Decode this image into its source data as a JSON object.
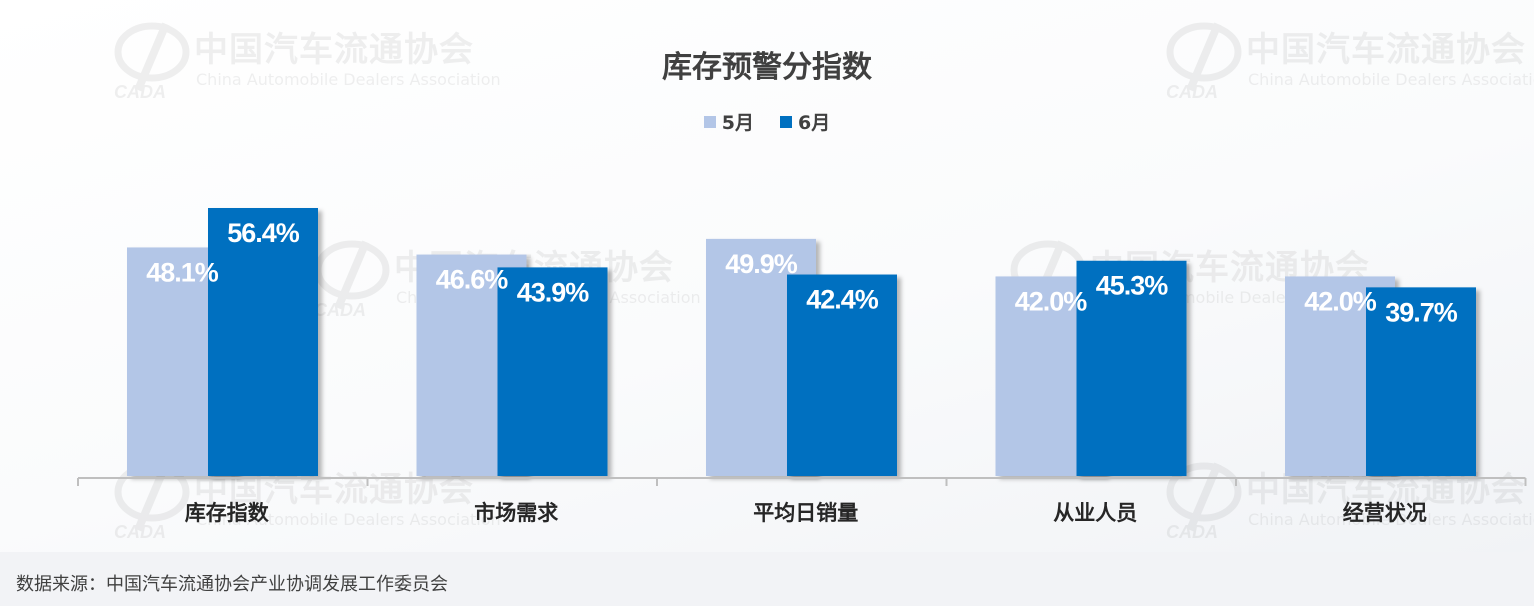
{
  "watermark": {
    "cn": "中国汽车流通协会",
    "en": "China Automobile Dealers Association",
    "logo_text": "CADA"
  },
  "colors": {
    "series_may": "#b3c6e7",
    "series_june": "#0070c0",
    "axis": "#bfbfbf",
    "title": "#404040"
  },
  "chart_data": {
    "type": "bar",
    "title": "库存预警分指数",
    "xlabel": "",
    "ylabel": "",
    "legend": "top-center",
    "grid": false,
    "ylim": [
      0,
      60
    ],
    "categories": [
      "库存指数",
      "市场需求",
      "平均日销量",
      "从业人员",
      "经营状况"
    ],
    "series": [
      {
        "name": "5月",
        "values": [
          48.1,
          46.6,
          49.9,
          42.0,
          42.0
        ],
        "labels": [
          "48.1%",
          "46.6%",
          "49.9%",
          "42.0%",
          "42.0%"
        ]
      },
      {
        "name": "6月",
        "values": [
          56.4,
          43.9,
          42.4,
          45.3,
          39.7
        ],
        "labels": [
          "56.4%",
          "43.9%",
          "42.4%",
          "45.3%",
          "39.7%"
        ]
      }
    ]
  },
  "footer": {
    "source": "数据来源：中国汽车流通协会产业协调发展工作委员会"
  }
}
